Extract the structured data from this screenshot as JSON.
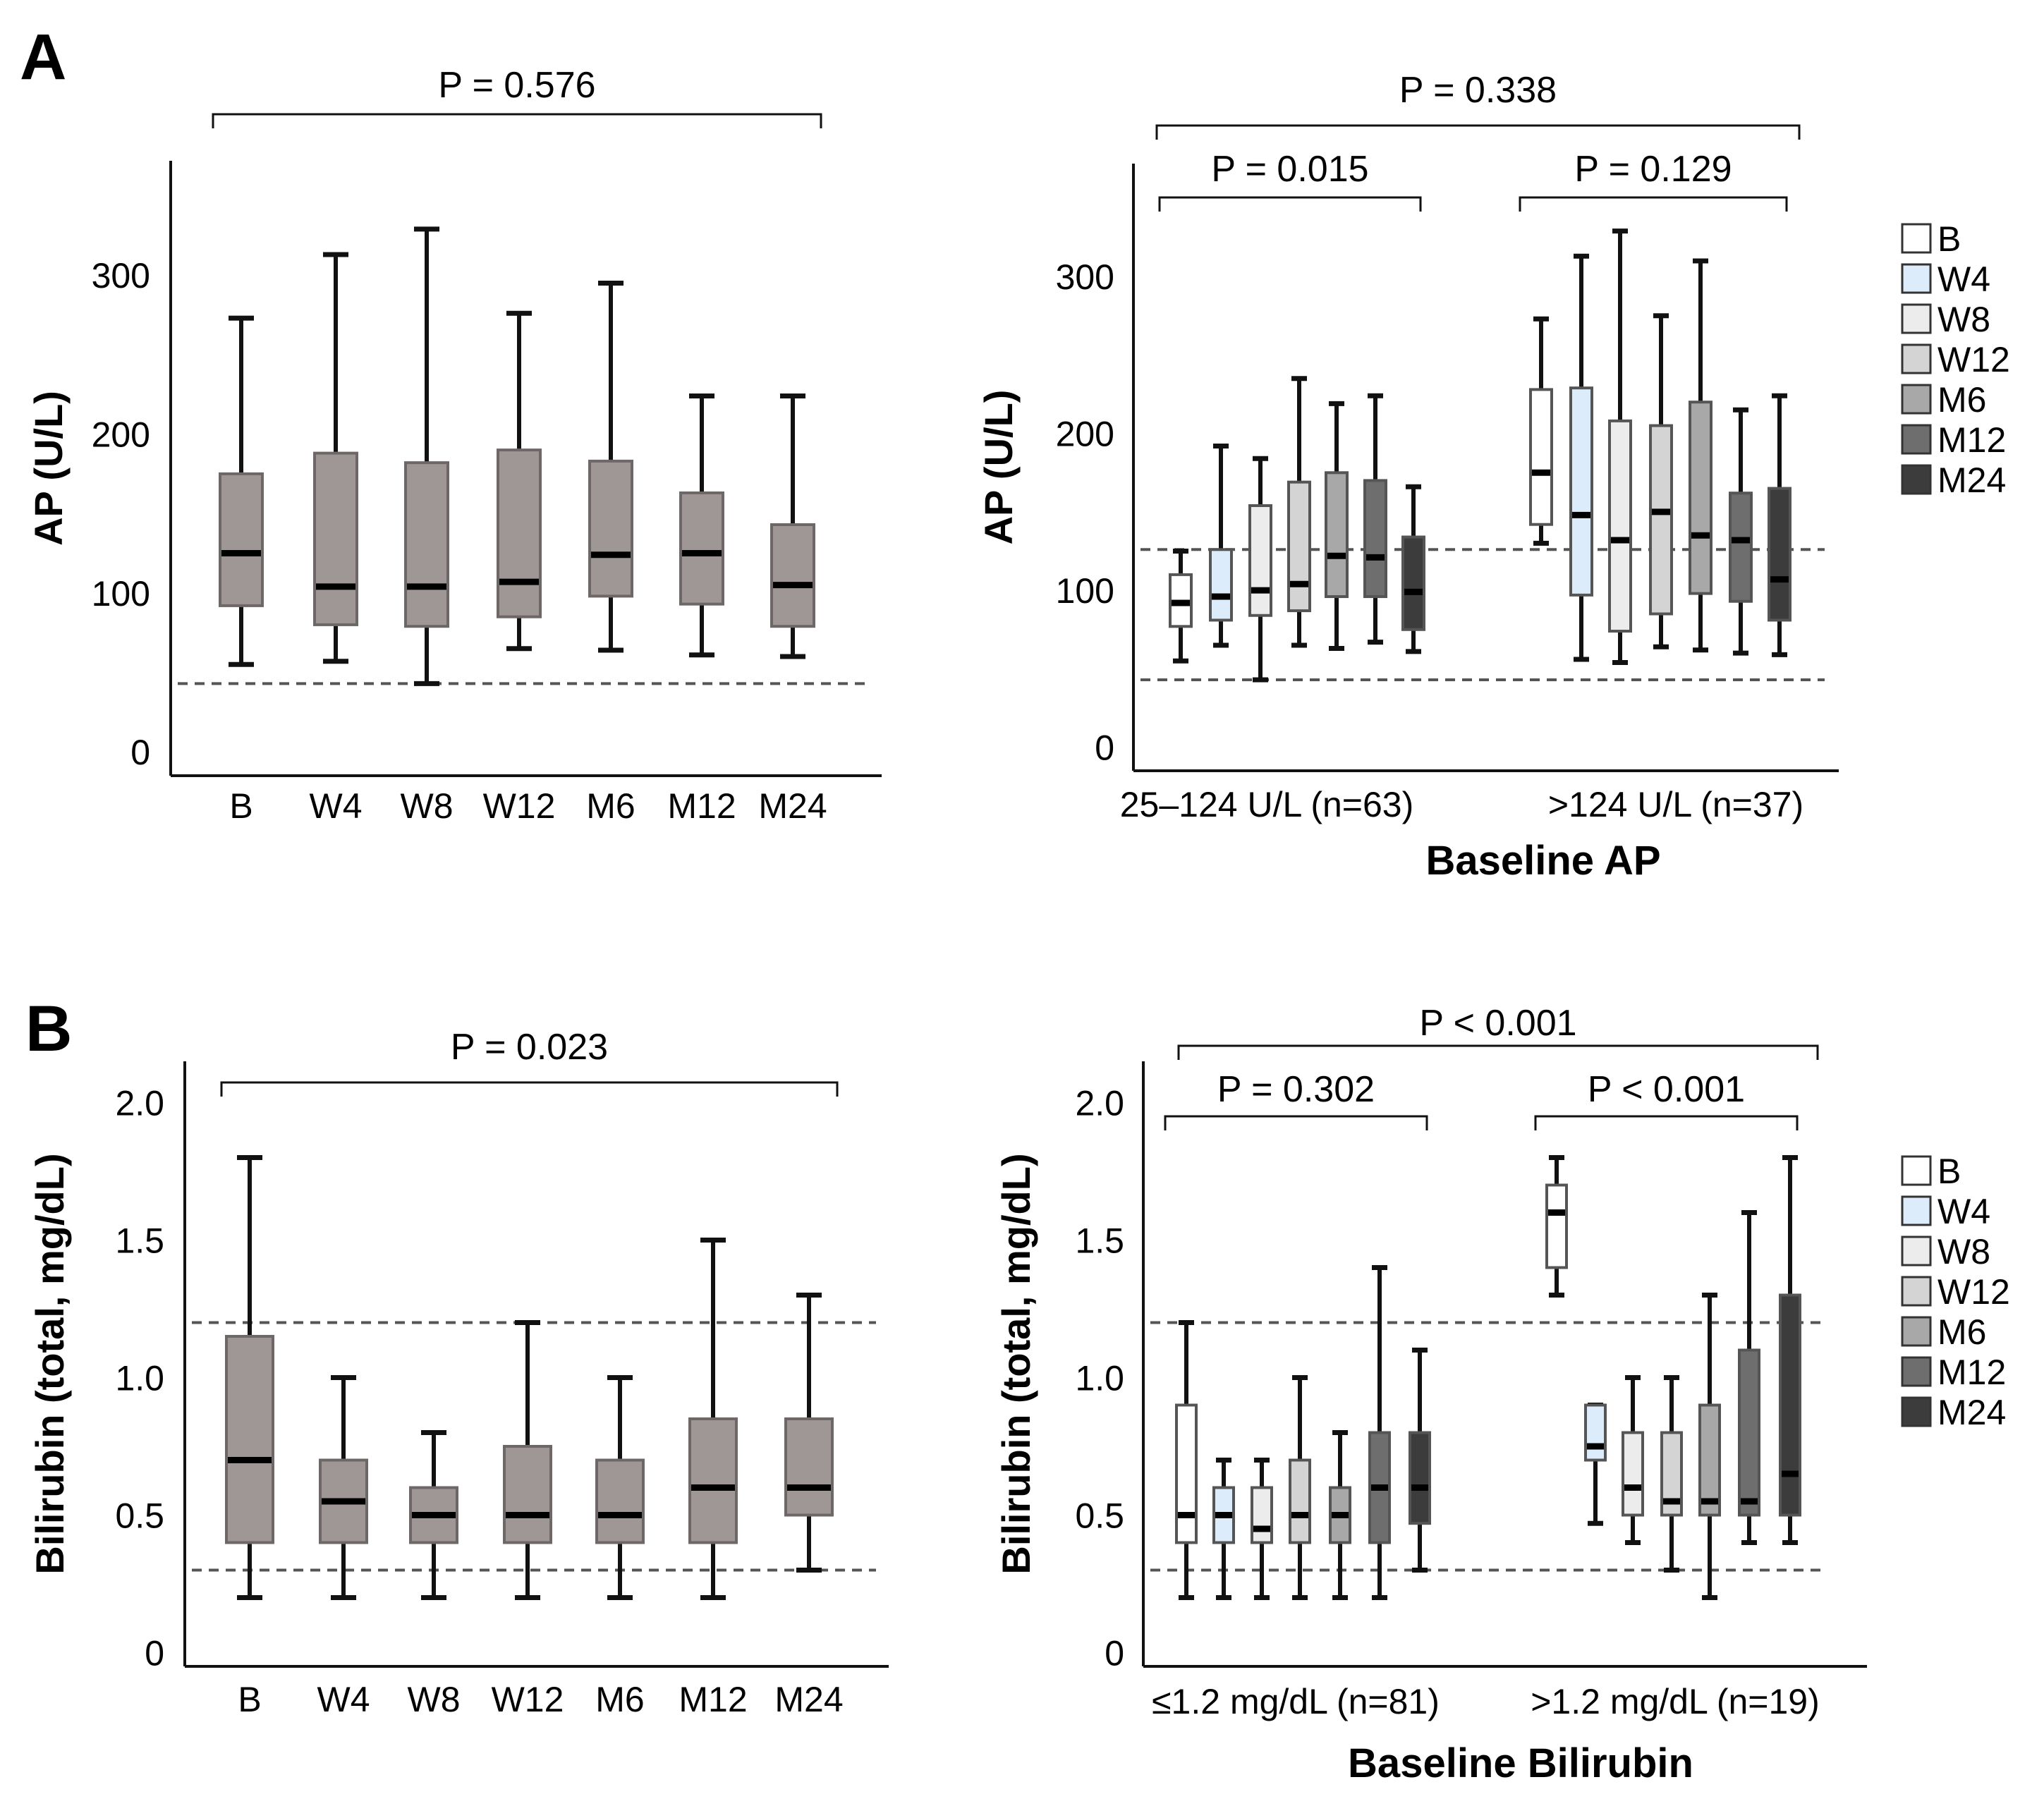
{
  "panels": {
    "A": "A",
    "B": "B"
  },
  "colors": {
    "overall_box": "#9e9796",
    "overall_stroke": "#6e6767",
    "timepoints": {
      "B": "#ffffff",
      "W4": "#dcecfa",
      "W8": "#ececec",
      "W12": "#d4d4d4",
      "M6": "#a8a8a8",
      "M12": "#6e6e6e",
      "M24": "#3c3c3c"
    }
  },
  "chart_data": [
    {
      "id": "A-left",
      "type": "box",
      "ylabel": "AP (U/L)",
      "ylim": [
        -15,
        372
      ],
      "yticks": [
        0,
        100,
        200,
        300
      ],
      "reference_lines": [
        43
      ],
      "categories": [
        "B",
        "W4",
        "W8",
        "W12",
        "M6",
        "M12",
        "M24"
      ],
      "boxes": [
        {
          "min": 55,
          "q1": 92,
          "median": 125,
          "q3": 175,
          "max": 273
        },
        {
          "min": 57,
          "q1": 80,
          "median": 104,
          "q3": 188,
          "max": 313
        },
        {
          "min": 43,
          "q1": 79,
          "median": 104,
          "q3": 182,
          "max": 329
        },
        {
          "min": 65,
          "q1": 85,
          "median": 107,
          "q3": 190,
          "max": 276
        },
        {
          "min": 64,
          "q1": 98,
          "median": 124,
          "q3": 183,
          "max": 295
        },
        {
          "min": 61,
          "q1": 93,
          "median": 125,
          "q3": 163,
          "max": 224
        },
        {
          "min": 60,
          "q1": 79,
          "median": 105,
          "q3": 143,
          "max": 224
        }
      ],
      "p_values": [
        {
          "text": "P = 0.576",
          "from": 0,
          "to": 6
        }
      ]
    },
    {
      "id": "A-right",
      "type": "box",
      "ylabel": "AP (U/L)",
      "xlabel": "Baseline AP",
      "ylim": [
        -15,
        372
      ],
      "yticks": [
        0,
        100,
        200,
        300
      ],
      "reference_lines": [
        43,
        126
      ],
      "series_names": [
        "B",
        "W4",
        "W8",
        "W12",
        "M6",
        "M12",
        "M24"
      ],
      "groups": [
        {
          "label": "25–124 U/L (n=63)",
          "p_value": "P = 0.015",
          "boxes": [
            {
              "min": 55,
              "q1": 77,
              "median": 92,
              "q3": 110,
              "max": 125
            },
            {
              "min": 65,
              "q1": 81,
              "median": 96,
              "q3": 126,
              "max": 192
            },
            {
              "min": 43,
              "q1": 84,
              "median": 100,
              "q3": 154,
              "max": 184
            },
            {
              "min": 65,
              "q1": 87,
              "median": 104,
              "q3": 169,
              "max": 235
            },
            {
              "min": 63,
              "q1": 96,
              "median": 122,
              "q3": 175,
              "max": 219
            },
            {
              "min": 67,
              "q1": 96,
              "median": 121,
              "q3": 170,
              "max": 224
            },
            {
              "min": 61,
              "q1": 75,
              "median": 99,
              "q3": 134,
              "max": 166
            }
          ]
        },
        {
          "label": ">124 U/L (n=37)",
          "p_value": "P = 0.129",
          "boxes": [
            {
              "min": 130,
              "q1": 142,
              "median": 175,
              "q3": 228,
              "max": 273
            },
            {
              "min": 56,
              "q1": 97,
              "median": 148,
              "q3": 229,
              "max": 313
            },
            {
              "min": 54,
              "q1": 74,
              "median": 132,
              "q3": 208,
              "max": 329
            },
            {
              "min": 64,
              "q1": 85,
              "median": 150,
              "q3": 205,
              "max": 275
            },
            {
              "min": 62,
              "q1": 98,
              "median": 135,
              "q3": 220,
              "max": 310
            },
            {
              "min": 60,
              "q1": 93,
              "median": 132,
              "q3": 162,
              "max": 215
            },
            {
              "min": 59,
              "q1": 81,
              "median": 107,
              "q3": 165,
              "max": 224
            }
          ]
        }
      ],
      "p_values": [
        {
          "text": "P = 0.338",
          "from": 0,
          "to": 1
        }
      ]
    },
    {
      "id": "B-left",
      "type": "box",
      "ylabel": "Bilirubin (total, mg/dL)",
      "ylim": [
        -0.05,
        2.15
      ],
      "yticks": [
        0,
        0.5,
        1.0,
        1.5,
        2.0
      ],
      "ytick_labels": [
        "0",
        "0.5",
        "1.0",
        "1.5",
        "2.0"
      ],
      "reference_lines": [
        0.3,
        1.2
      ],
      "categories": [
        "B",
        "W4",
        "W8",
        "W12",
        "M6",
        "M12",
        "M24"
      ],
      "boxes": [
        {
          "min": 0.2,
          "q1": 0.4,
          "median": 0.7,
          "q3": 1.15,
          "max": 1.8
        },
        {
          "min": 0.2,
          "q1": 0.4,
          "median": 0.55,
          "q3": 0.7,
          "max": 1.0
        },
        {
          "min": 0.2,
          "q1": 0.4,
          "median": 0.5,
          "q3": 0.6,
          "max": 0.8
        },
        {
          "min": 0.2,
          "q1": 0.4,
          "median": 0.5,
          "q3": 0.75,
          "max": 1.2
        },
        {
          "min": 0.2,
          "q1": 0.4,
          "median": 0.5,
          "q3": 0.7,
          "max": 1.0
        },
        {
          "min": 0.2,
          "q1": 0.4,
          "median": 0.6,
          "q3": 0.85,
          "max": 1.5
        },
        {
          "min": 0.3,
          "q1": 0.5,
          "median": 0.6,
          "q3": 0.85,
          "max": 1.3
        }
      ],
      "p_values": [
        {
          "text": "P = 0.023",
          "from": 0,
          "to": 6
        }
      ]
    },
    {
      "id": "B-right",
      "type": "box",
      "ylabel": "Bilirubin (total, mg/dL)",
      "xlabel": "Baseline Bilirubin",
      "ylim": [
        -0.05,
        2.15
      ],
      "yticks": [
        0,
        0.5,
        1.0,
        1.5,
        2.0
      ],
      "ytick_labels": [
        "0",
        "0.5",
        "1.0",
        "1.5",
        "2.0"
      ],
      "reference_lines": [
        0.3,
        1.2
      ],
      "series_names": [
        "B",
        "W4",
        "W8",
        "W12",
        "M6",
        "M12",
        "M24"
      ],
      "groups": [
        {
          "label": "≤1.2 mg/dL (n=81)",
          "p_value": "P = 0.302",
          "boxes": [
            {
              "min": 0.2,
              "q1": 0.4,
              "median": 0.5,
              "q3": 0.9,
              "max": 1.2
            },
            {
              "min": 0.2,
              "q1": 0.4,
              "median": 0.5,
              "q3": 0.6,
              "max": 0.7
            },
            {
              "min": 0.2,
              "q1": 0.4,
              "median": 0.45,
              "q3": 0.6,
              "max": 0.7
            },
            {
              "min": 0.2,
              "q1": 0.4,
              "median": 0.5,
              "q3": 0.7,
              "max": 1.0
            },
            {
              "min": 0.2,
              "q1": 0.4,
              "median": 0.5,
              "q3": 0.6,
              "max": 0.8
            },
            {
              "min": 0.2,
              "q1": 0.4,
              "median": 0.6,
              "q3": 0.8,
              "max": 1.4
            },
            {
              "min": 0.3,
              "q1": 0.47,
              "median": 0.6,
              "q3": 0.8,
              "max": 1.1
            }
          ]
        },
        {
          "label": ">1.2 mg/dL (n=19)",
          "p_value": "P < 0.001",
          "boxes": [
            {
              "min": 1.3,
              "q1": 1.4,
              "median": 1.6,
              "q3": 1.7,
              "max": 1.8
            },
            {
              "min": 0.47,
              "q1": 0.7,
              "median": 0.75,
              "q3": 0.9,
              "max": 0.9
            },
            {
              "min": 0.4,
              "q1": 0.5,
              "median": 0.6,
              "q3": 0.8,
              "max": 1.0
            },
            {
              "min": 0.3,
              "q1": 0.5,
              "median": 0.55,
              "q3": 0.8,
              "max": 1.0
            },
            {
              "min": 0.2,
              "q1": 0.5,
              "median": 0.55,
              "q3": 0.9,
              "max": 1.3
            },
            {
              "min": 0.4,
              "q1": 0.5,
              "median": 0.55,
              "q3": 1.1,
              "max": 1.6
            },
            {
              "min": 0.4,
              "q1": 0.5,
              "median": 0.65,
              "q3": 1.3,
              "max": 1.8
            }
          ]
        }
      ],
      "p_values": [
        {
          "text": "P < 0.001",
          "from": 0,
          "to": 1
        }
      ]
    }
  ]
}
